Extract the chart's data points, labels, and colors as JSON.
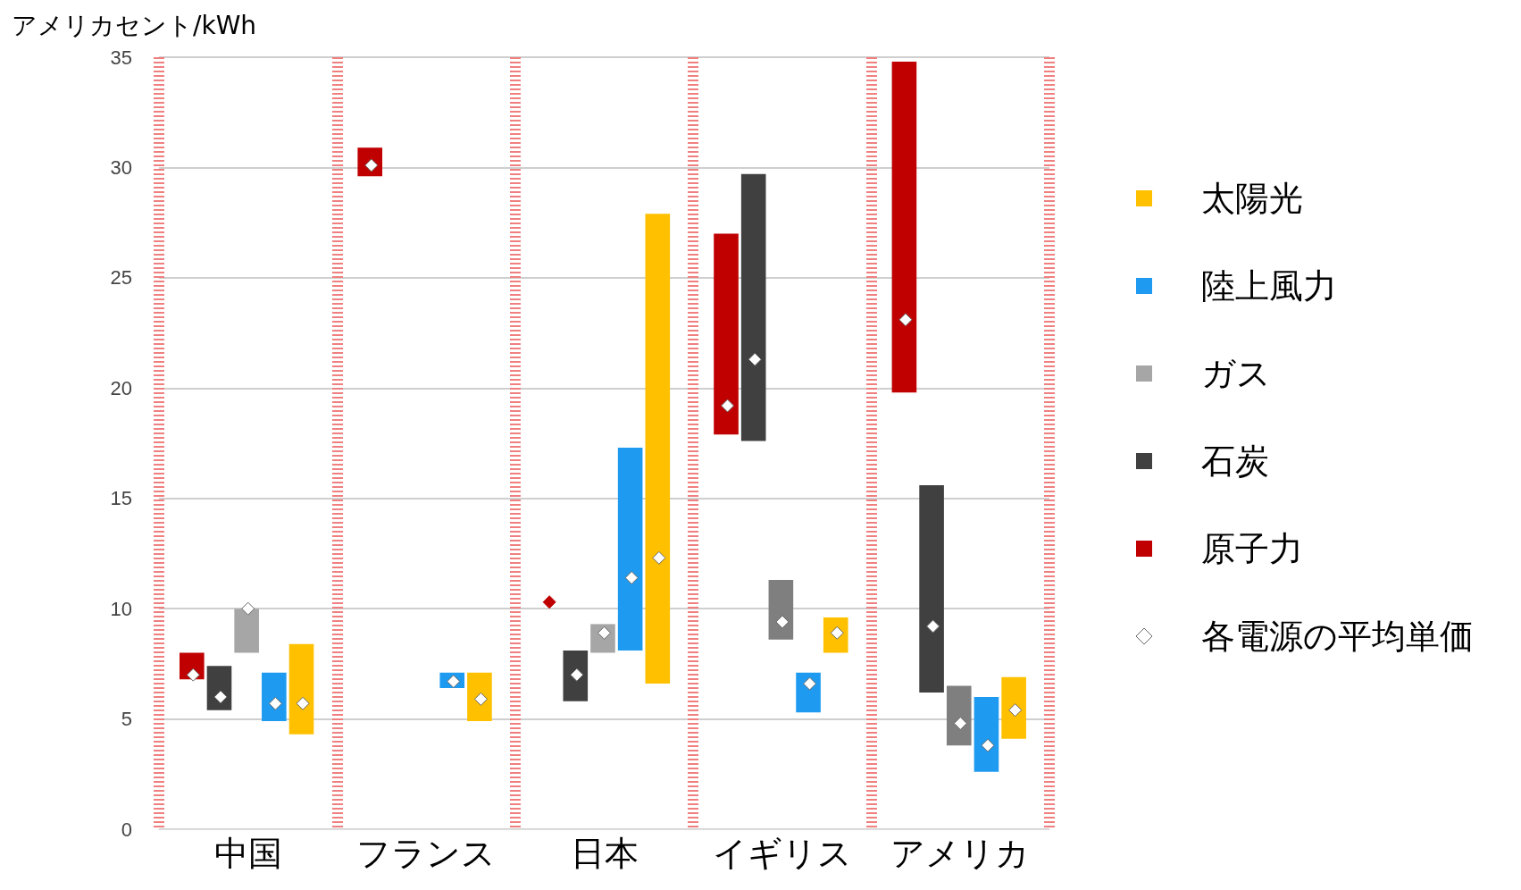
{
  "chart_data": {
    "type": "bar",
    "ylabel": "アメリカセント/kWh",
    "categories": [
      "中国",
      "フランス",
      "日本",
      "イギリス",
      "アメリカ"
    ],
    "ylim": [
      0,
      35
    ],
    "yticks": [
      0,
      5,
      10,
      15,
      20,
      25,
      30,
      35
    ],
    "grid": true,
    "legend": "right",
    "marker": "diamond",
    "series": [
      {
        "name": "原子力",
        "color": "#c00000",
        "base": [
          6.8,
          29.6,
          null,
          17.9,
          19.8
        ],
        "values": [
          1.2,
          1.3,
          null,
          9.1,
          15.0
        ]
      },
      {
        "name": "石炭",
        "color": "#404040",
        "base": [
          5.4,
          null,
          5.8,
          17.6,
          6.2
        ],
        "values": [
          2.0,
          null,
          2.3,
          12.1,
          9.4
        ]
      },
      {
        "name": "ガス",
        "color": "#a6a6a6",
        "colors": [
          "#a6a6a6",
          null,
          "#a6a6a6",
          "#7f7f7f",
          "#7f7f7f"
        ],
        "base": [
          8.0,
          null,
          8.0,
          8.6,
          3.8
        ],
        "values": [
          2.0,
          null,
          1.3,
          2.7,
          2.7
        ]
      },
      {
        "name": "陸上風力",
        "color": "#1e9bf0",
        "base": [
          4.9,
          6.4,
          8.1,
          5.3,
          2.6
        ],
        "values": [
          2.2,
          0.7,
          9.2,
          1.8,
          3.4
        ]
      },
      {
        "name": "太陽光",
        "color": "#ffc000",
        "base": [
          4.3,
          4.9,
          6.6,
          8.0,
          4.1
        ],
        "values": [
          4.1,
          2.2,
          21.3,
          1.6,
          2.8
        ]
      },
      {
        "name": "各電源の平均単価",
        "type": "scatter",
        "color": "#ffffff",
        "x": [
          "中国",
          "中国",
          "中国",
          "中国",
          "中国",
          "フランス",
          "フランス",
          "フランス",
          "フランス",
          "フランス",
          "日本",
          "日本",
          "日本",
          "日本",
          "日本",
          "イギリス",
          "イギリス",
          "イギリス",
          "イギリス",
          "イギリス",
          "アメリカ",
          "アメリカ",
          "アメリカ",
          "アメリカ",
          "アメリカ"
        ],
        "values": [
          7.0,
          6.0,
          10.0,
          5.7,
          5.7,
          30.1,
          null,
          null,
          6.7,
          5.9,
          10.3,
          7.0,
          8.9,
          11.4,
          12.3,
          19.2,
          21.3,
          9.4,
          6.6,
          8.9,
          23.1,
          9.2,
          4.8,
          3.8,
          5.4
        ],
        "colors": [
          "#ffffff",
          "#ffffff",
          "#ffffff",
          "#ffffff",
          "#ffffff",
          "#ffffff",
          null,
          null,
          "#ffffff",
          "#ffffff",
          "#c00000",
          "#ffffff",
          "#ffffff",
          "#ffffff",
          "#ffffff",
          "#ffffff",
          "#ffffff",
          "#ffffff",
          "#ffffff",
          "#ffffff",
          "#ffffff",
          "#ffffff",
          "#ffffff",
          "#ffffff",
          "#ffffff"
        ]
      }
    ]
  }
}
